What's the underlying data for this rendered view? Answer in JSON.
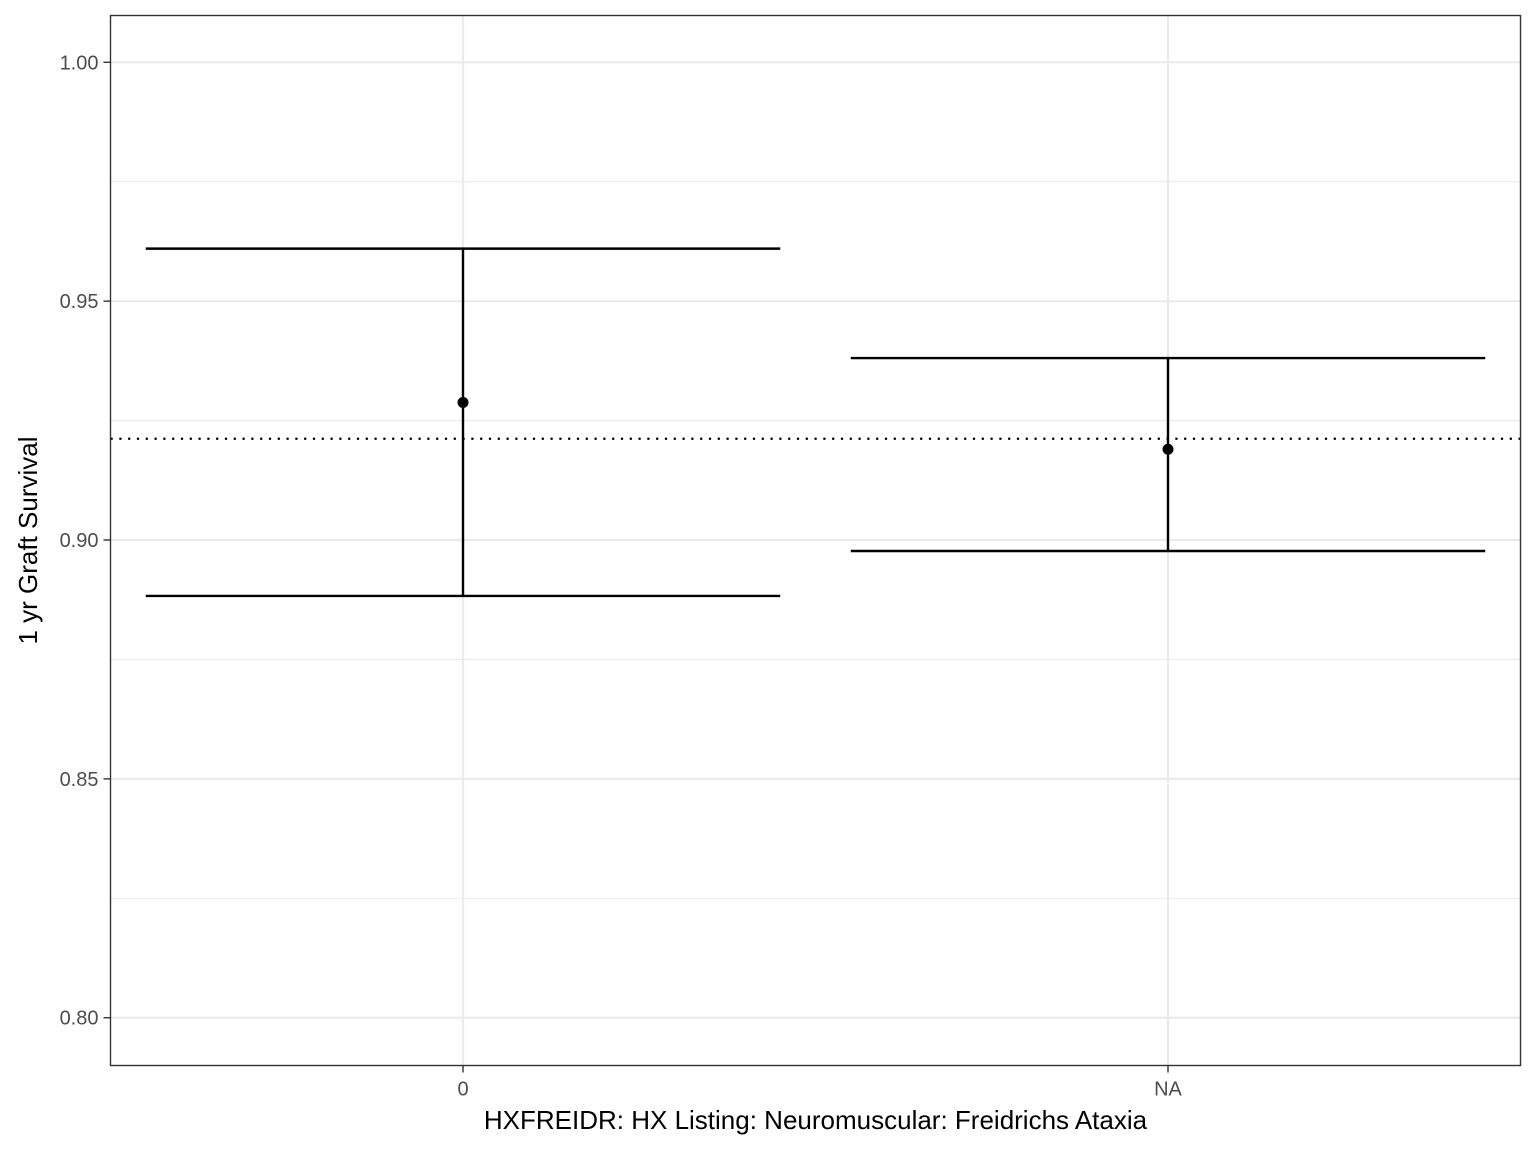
{
  "chart_data": {
    "type": "errorbar",
    "xlabel": "HXFREIDR: HX Listing: Neuromuscular: Freidrichs Ataxia",
    "ylabel": "1 yr Graft Survival",
    "categories": [
      "0",
      "NA"
    ],
    "points": [
      {
        "category": "0",
        "estimate": 0.9288,
        "lower": 0.8883,
        "upper": 0.961
      },
      {
        "category": "NA",
        "estimate": 0.919,
        "lower": 0.8977,
        "upper": 0.9381
      }
    ],
    "reference_line": {
      "y": 0.9212,
      "style": "dotted"
    },
    "ylim": [
      0.79,
      1.0098
    ],
    "yticks": [
      0.8,
      0.85,
      0.9,
      0.95,
      1.0
    ],
    "ytick_labels": [
      "0.80",
      "0.85",
      "0.90",
      "0.95",
      "1.00"
    ],
    "minor_gridlines": [
      0.825,
      0.875,
      0.925,
      0.975
    ],
    "grid": true,
    "colors": {
      "marks": "#000000",
      "grid": "#ebebeb",
      "panel_border": "#333333",
      "tick_label": "#4d4d4d"
    }
  }
}
